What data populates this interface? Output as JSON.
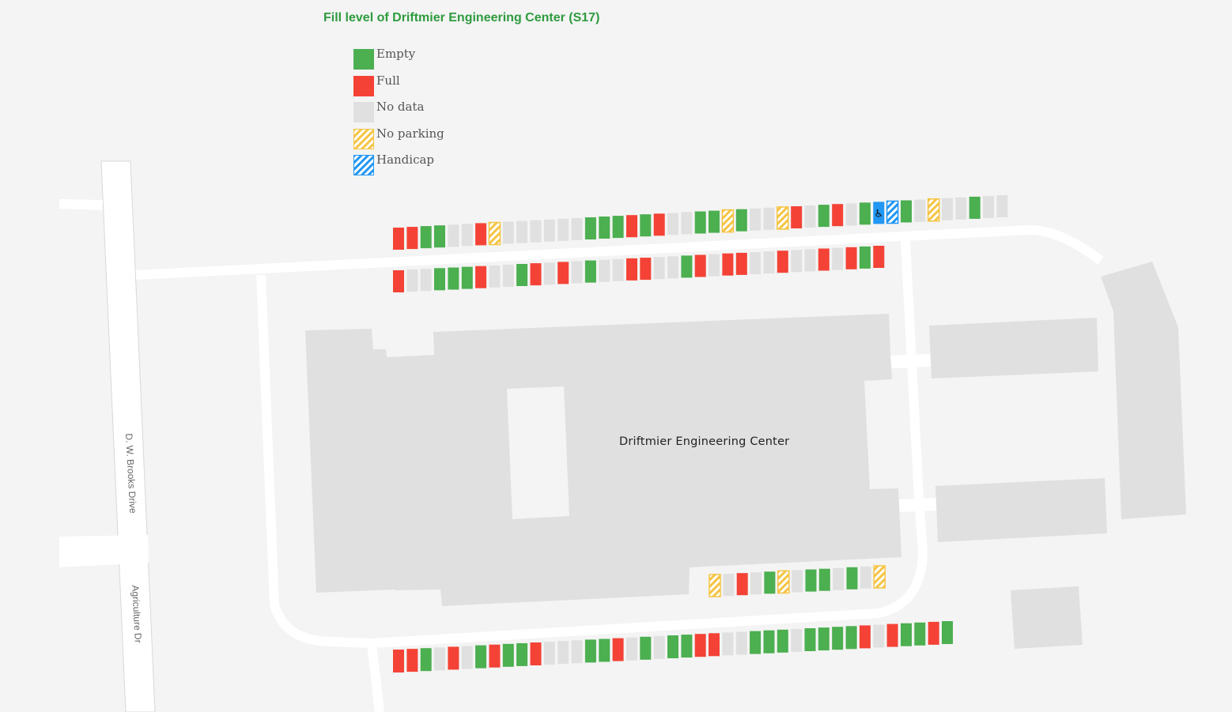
{
  "title": "Fill level of Driftmier Engineering Center (S17)",
  "colors": {
    "empty": "#4caf50",
    "full": "#f44336",
    "nodata": "#e0e0e0",
    "noparking": "#f6c343",
    "handicap": "#2196f3",
    "title": "#2e9b3e",
    "background": "#f4f4f4",
    "road": "#ffffff",
    "building": "#e0e0e0"
  },
  "legend": [
    {
      "key": "empty",
      "label": "Empty"
    },
    {
      "key": "full",
      "label": "Full"
    },
    {
      "key": "nodata",
      "label": "No data"
    },
    {
      "key": "noparking",
      "label": "No parking"
    },
    {
      "key": "handicap",
      "label": "Handicap"
    }
  ],
  "building": {
    "label": "Driftmier Engineering Center"
  },
  "streets": [
    {
      "name": "D. W. Brooks Drive"
    },
    {
      "name": "Agriculture Dr"
    }
  ],
  "handicap_symbol": "♿",
  "rows": [
    {
      "id": "row-top-north",
      "spots": [
        "F",
        "F",
        "E",
        "E",
        "N",
        "N",
        "F",
        "P",
        "N",
        "N",
        "N",
        "N",
        "N",
        "N",
        "E",
        "E",
        "E",
        "F",
        "E",
        "F",
        "N",
        "N",
        "E",
        "E",
        "P",
        "E",
        "N",
        "N",
        "P",
        "F",
        "N",
        "E",
        "F",
        "N",
        "E",
        "H",
        "h",
        "E",
        "N",
        "P",
        "N",
        "N",
        "E",
        "N",
        "N"
      ]
    },
    {
      "id": "row-top-south",
      "spots": [
        "F",
        "N",
        "N",
        "E",
        "E",
        "E",
        "F",
        "N",
        "N",
        "E",
        "F",
        "N",
        "F",
        "N",
        "E",
        "N",
        "N",
        "F",
        "F",
        "N",
        "N",
        "E",
        "F",
        "N",
        "F",
        "F",
        "N",
        "N",
        "F",
        "N",
        "N",
        "F",
        "N",
        "F",
        "E",
        "F"
      ]
    },
    {
      "id": "row-lower-building",
      "spots": [
        "P",
        "N",
        "F",
        "N",
        "E",
        "P",
        "N",
        "E",
        "E",
        "N",
        "E",
        "N",
        "P"
      ]
    },
    {
      "id": "row-bottom",
      "spots": [
        "F",
        "F",
        "E",
        "N",
        "F",
        "N",
        "E",
        "F",
        "E",
        "E",
        "F",
        "N",
        "N",
        "N",
        "E",
        "E",
        "F",
        "N",
        "E",
        "N",
        "E",
        "E",
        "F",
        "F",
        "N",
        "N",
        "E",
        "E",
        "E",
        "N",
        "E",
        "E",
        "E",
        "E",
        "F",
        "N",
        "F",
        "E",
        "E",
        "F",
        "E"
      ]
    }
  ]
}
